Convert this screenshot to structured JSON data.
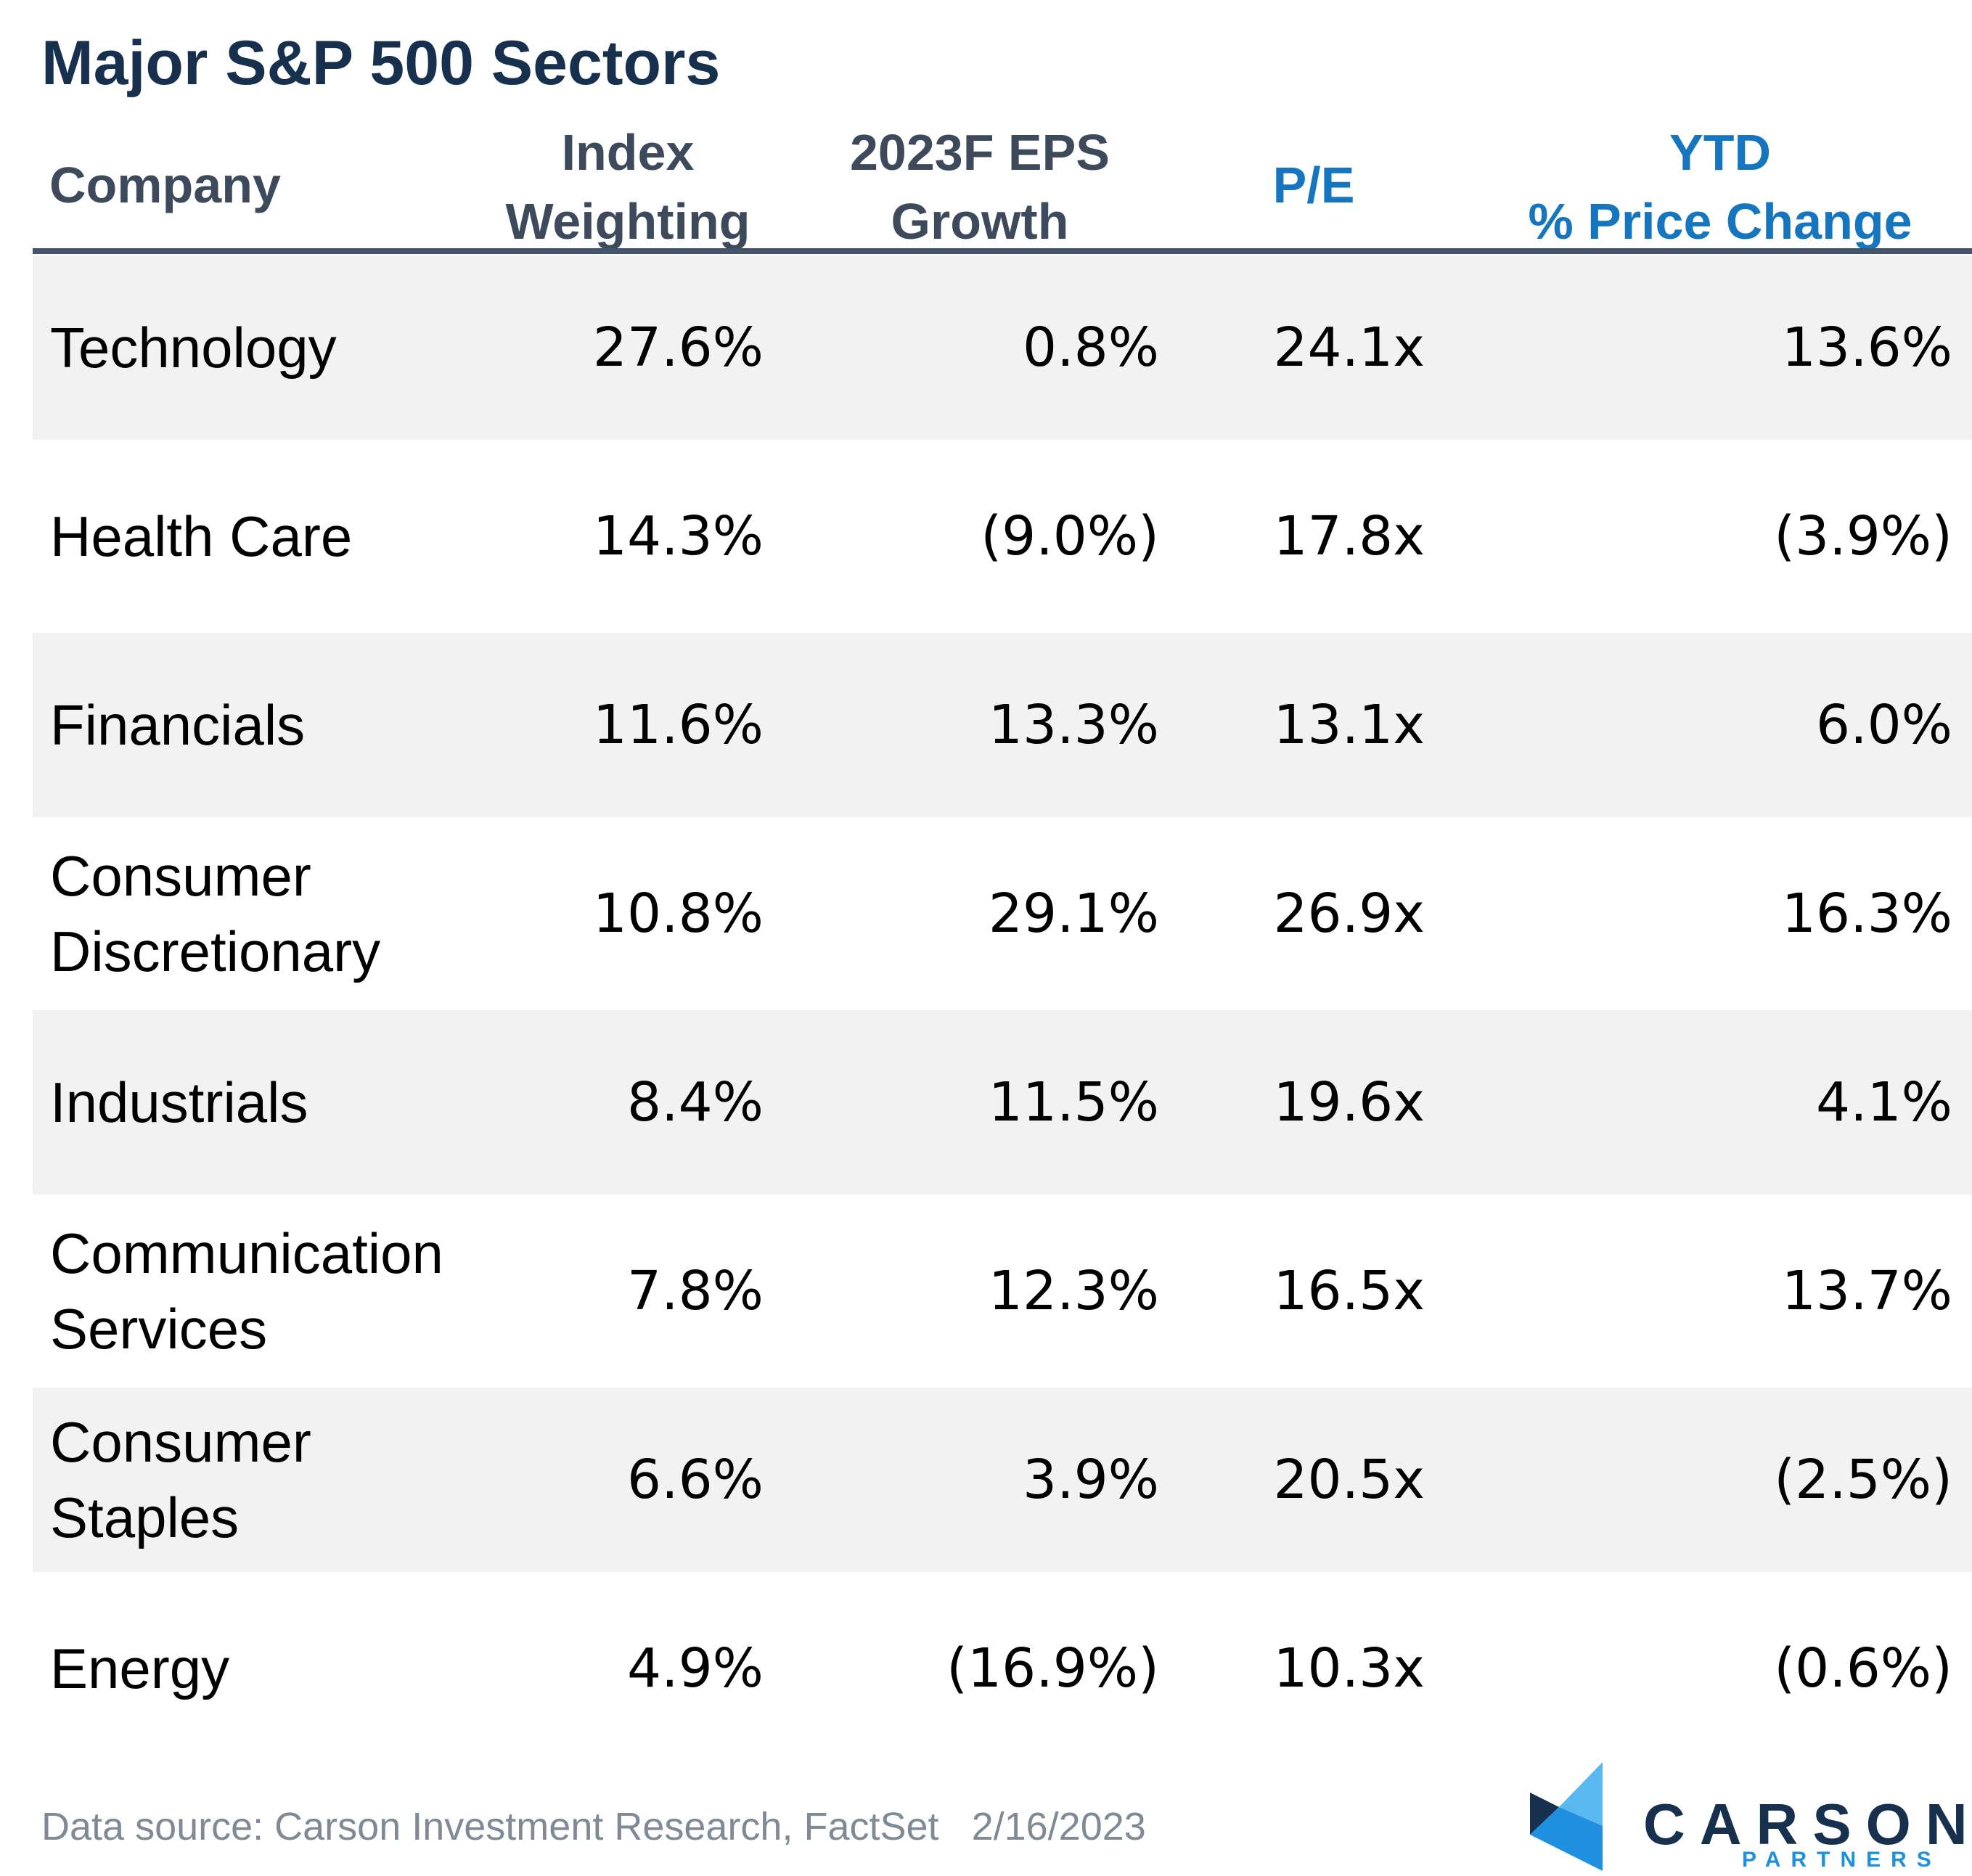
{
  "chart_data": {
    "type": "table",
    "title": "Major S&P 500 Sectors",
    "columns": [
      {
        "key": "company",
        "lines": [
          "Company"
        ],
        "color": "#3d4a5c"
      },
      {
        "key": "index_weighting",
        "lines": [
          "Index",
          "Weighting"
        ],
        "color": "#3d4a5c"
      },
      {
        "key": "eps_growth",
        "lines": [
          "2023F EPS",
          "Growth"
        ],
        "color": "#3d4a5c"
      },
      {
        "key": "pe",
        "lines": [
          "P/E"
        ],
        "color": "#1575bf"
      },
      {
        "key": "ytd",
        "lines": [
          "YTD",
          "% Price Change"
        ],
        "color": "#1575bf"
      }
    ],
    "rows": [
      {
        "company": [
          "Technology"
        ],
        "index_weighting": "27.6%",
        "eps_growth": "0.8%",
        "pe": "24.1x",
        "ytd": "13.6%"
      },
      {
        "company": [
          "Health Care"
        ],
        "index_weighting": "14.3%",
        "eps_growth": "(9.0%)",
        "pe": "17.8x",
        "ytd": "(3.9%)"
      },
      {
        "company": [
          "Financials"
        ],
        "index_weighting": "11.6%",
        "eps_growth": "13.3%",
        "pe": "13.1x",
        "ytd": "6.0%"
      },
      {
        "company": [
          "Consumer",
          "Discretionary"
        ],
        "index_weighting": "10.8%",
        "eps_growth": "29.1%",
        "pe": "26.9x",
        "ytd": "16.3%"
      },
      {
        "company": [
          "Industrials"
        ],
        "index_weighting": "8.4%",
        "eps_growth": "11.5%",
        "pe": "19.6x",
        "ytd": "4.1%"
      },
      {
        "company": [
          "Communication",
          "Services"
        ],
        "index_weighting": "7.8%",
        "eps_growth": "12.3%",
        "pe": "16.5x",
        "ytd": "13.7%"
      },
      {
        "company": [
          "Consumer",
          "Staples"
        ],
        "index_weighting": "6.6%",
        "eps_growth": "3.9%",
        "pe": "20.5x",
        "ytd": "(2.5%)"
      },
      {
        "company": [
          "Energy"
        ],
        "index_weighting": "4.9%",
        "eps_growth": "(16.9%)",
        "pe": "10.3x",
        "ytd": "(0.6%)"
      }
    ]
  },
  "footer": {
    "source": "Data source: Carson Investment Research, FactSet",
    "date": "2/16/2023"
  },
  "logo": {
    "name": "CARSON",
    "sub": "PARTNERS"
  },
  "colors": {
    "title": "#16304d",
    "header_dark": "#3d4a5c",
    "header_blue": "#1575bf",
    "rule": "#44546a",
    "stripe": "#f2f2f2",
    "footer": "#7f8a96",
    "logo_light_blue": "#5ab8f0",
    "logo_blue": "#1f8fe0",
    "logo_navy": "#16304d"
  }
}
